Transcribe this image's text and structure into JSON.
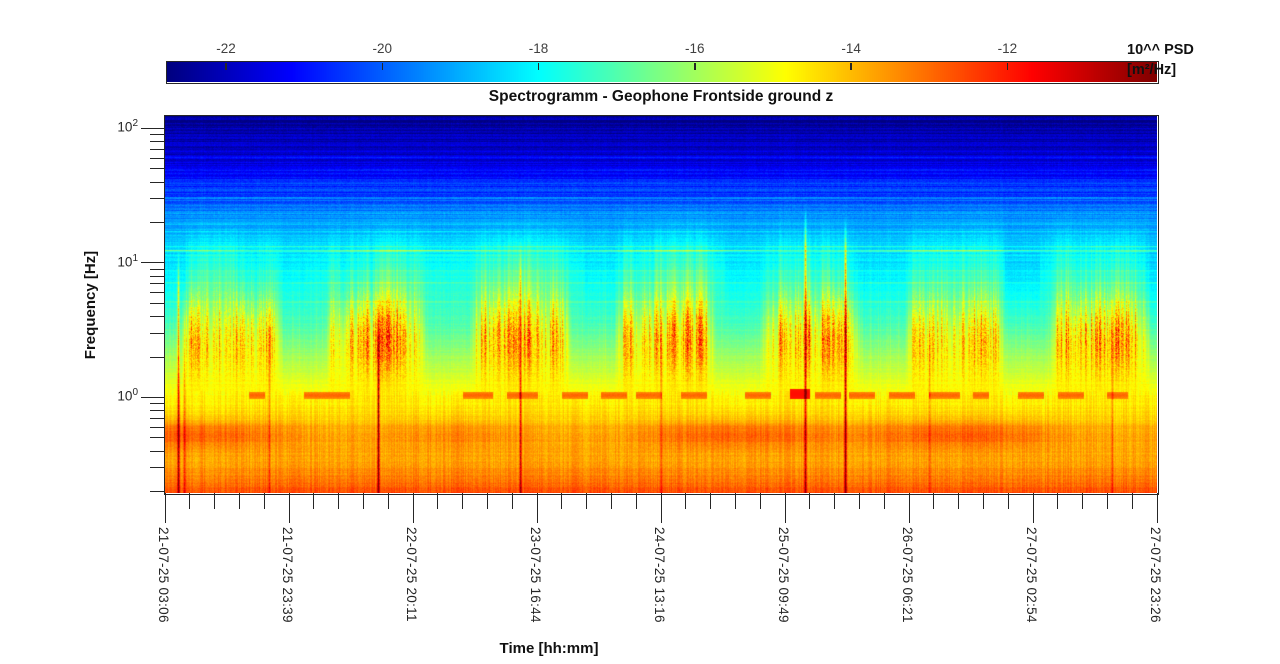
{
  "chart_data": {
    "type": "heatmap",
    "subtype": "spectrogram",
    "title": "Spectrogramm - Geophone Frontside ground z",
    "x_axis": {
      "label": "Time [hh:mm]",
      "tick_labels": [
        "21-07-25 03:06",
        "21-07-25 23:39",
        "22-07-25 20:11",
        "23-07-25 16:44",
        "24-07-25 13:16",
        "25-07-25 09:49",
        "26-07-25 06:21",
        "27-07-25 02:54",
        "27-07-25 23:26"
      ],
      "minor_ticks_per_interval": 4,
      "start_hour_of_day": 3.1,
      "total_hours": 164.33
    },
    "y_axis": {
      "label": "Frequency [Hz]",
      "scale": "log",
      "major_ticks": [
        {
          "mantissa": "10",
          "exponent": "2",
          "logf": 2
        },
        {
          "mantissa": "10",
          "exponent": "1",
          "logf": 1
        },
        {
          "mantissa": "10",
          "exponent": "0",
          "logf": 0
        }
      ],
      "range_hz": [
        0.195,
        124
      ],
      "logf_top": 2.0929,
      "logf_bottom": -0.71
    },
    "color_axis": {
      "label_line1": "10^^ PSD",
      "label_line2": "[m²/Hz]",
      "tick_values": [
        -22,
        -20,
        -18,
        -16,
        -14,
        -12
      ],
      "vmin": -22.755,
      "vmax": -10.085,
      "colormap": "jet"
    },
    "psd_base_profile_logf_vs_value": [
      [
        -0.71,
        -12.6
      ],
      [
        -0.55,
        -13.4
      ],
      [
        -0.42,
        -13.8
      ],
      [
        -0.3,
        -13.9
      ],
      [
        -0.22,
        -14.0
      ],
      [
        -0.15,
        -14.35
      ],
      [
        0.0,
        -14.75
      ],
      [
        0.15,
        -15.35
      ],
      [
        0.3,
        -16.05
      ],
      [
        0.45,
        -16.75
      ],
      [
        0.6,
        -17.3
      ],
      [
        0.85,
        -17.9
      ],
      [
        1.0,
        -18.2
      ],
      [
        1.15,
        -18.55
      ],
      [
        1.3,
        -19.25
      ],
      [
        1.5,
        -20.3
      ],
      [
        1.7,
        -21.3
      ],
      [
        1.9,
        -22.1
      ],
      [
        2.1,
        -22.45
      ]
    ],
    "features": {
      "horizontal_lines": [
        {
          "logf": 1.095,
          "amp": 2.3
        },
        {
          "logf": 1.13,
          "amp": 0.8
        },
        {
          "logf": 1.062,
          "amp": 0.6
        },
        {
          "logf": 0.86,
          "amp": 0.9
        },
        {
          "logf": 0.72,
          "amp": 0.7
        },
        {
          "logf": 0.95,
          "amp": 0.5
        },
        {
          "logf": 1.24,
          "amp": 0.55
        },
        {
          "logf": 1.3,
          "amp": 0.6
        },
        {
          "logf": 1.38,
          "amp": 0.5
        },
        {
          "logf": 1.49,
          "amp": 0.7
        },
        {
          "logf": 1.6,
          "amp": 0.5
        },
        {
          "logf": 1.7,
          "amp": 0.75
        },
        {
          "logf": 1.79,
          "amp": 0.5
        },
        {
          "logf": 1.9,
          "amp": 0.45
        },
        {
          "logf": 1.985,
          "amp": 0.5
        }
      ],
      "vertical_event_lines": [
        {
          "x": 0.0131,
          "amp": 3.0,
          "top_logf": 0.75
        },
        {
          "x": 0.019,
          "amp": 1.6,
          "top_logf": 0.5
        },
        {
          "x": 0.105,
          "amp": 1.1,
          "top_logf": 0.4
        },
        {
          "x": 0.2145,
          "amp": 4.0,
          "top_logf": 0.45
        },
        {
          "x": 0.358,
          "amp": 2.6,
          "top_logf": 0.85
        },
        {
          "x": 0.5,
          "amp": 0.9,
          "top_logf": 0.3
        },
        {
          "x": 0.645,
          "amp": 2.9,
          "top_logf": 1.1
        },
        {
          "x": 0.6855,
          "amp": 3.4,
          "top_logf": 1.0
        },
        {
          "x": 0.77,
          "amp": 1.0,
          "top_logf": 0.3
        },
        {
          "x": 0.955,
          "amp": 1.1,
          "top_logf": 0.4
        }
      ],
      "one_hz_dashes": {
        "logf_center": 0.02,
        "value": -13.35,
        "segments": [
          [
            0.085,
            0.1
          ],
          [
            0.14,
            0.185
          ],
          [
            0.3,
            0.33
          ],
          [
            0.345,
            0.375
          ],
          [
            0.4,
            0.425
          ],
          [
            0.44,
            0.465
          ],
          [
            0.475,
            0.5
          ],
          [
            0.52,
            0.545
          ],
          [
            0.585,
            0.61
          ],
          [
            0.655,
            0.68
          ],
          [
            0.69,
            0.715
          ],
          [
            0.73,
            0.755
          ],
          [
            0.77,
            0.8
          ],
          [
            0.815,
            0.83
          ],
          [
            0.86,
            0.885
          ],
          [
            0.9,
            0.925
          ],
          [
            0.95,
            0.97
          ]
        ],
        "strong_blob": {
          "x0": 0.63,
          "x1": 0.649,
          "value": -12.0,
          "logf_center": 0.03
        }
      },
      "diurnal_event_band": {
        "logf_center": 0.48,
        "logf_width": 0.3,
        "max_amp": 3.5,
        "day_window_hours": [
          5.5,
          22.5
        ]
      },
      "microseism_band": {
        "logf_center": -0.27,
        "logf_width": 0.105,
        "max_amp": 1.15
      }
    }
  }
}
